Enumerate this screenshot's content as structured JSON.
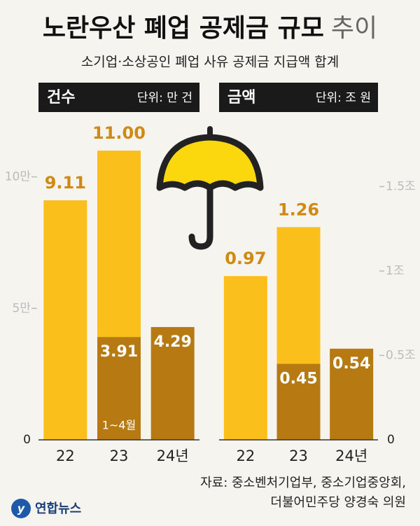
{
  "title": "노란우산 폐업 공제금 규모",
  "title_tail": "추이",
  "subtitle": "소기업·소상공인 폐업 사유 공제금 지급액 합계",
  "source": [
    "자료: 중소벤처기업부, 중소기업중앙회,",
    "더불어민주당 양경숙 의원"
  ],
  "logo": "연합뉴스",
  "chart_data": [
    {
      "type": "bar",
      "header": "건수",
      "unit": "단위: 만 건",
      "yaxis_side": "left",
      "categories": [
        "22",
        "23",
        "24년"
      ],
      "series": [
        {
          "color": "#fbbf1c",
          "values": [
            9.11,
            11,
            null
          ],
          "value_labels": [
            "9.11",
            "11.00",
            null
          ]
        },
        {
          "name": "1~4월",
          "color": "#b77a12",
          "values": [
            null,
            3.91,
            4.29
          ]
        }
      ],
      "ylim": [
        0,
        12.2
      ],
      "yticks": [
        0,
        {
          "value": 5,
          "label": "5만"
        },
        {
          "value": 10,
          "label": "10만"
        }
      ]
    },
    {
      "type": "bar",
      "header": "금액",
      "unit": "단위: 조 원",
      "yaxis_side": "right",
      "categories": [
        "22",
        "23",
        "24년"
      ],
      "series": [
        {
          "color": "#fbbf1c",
          "values": [
            0.97,
            1.26,
            null
          ]
        },
        {
          "color": "#b77a12",
          "values": [
            null,
            0.45,
            0.54
          ]
        }
      ],
      "ylim": [
        0,
        1.9
      ],
      "yticks": [
        0,
        {
          "value": 0.5,
          "label": "0.5조"
        },
        {
          "value": 1,
          "label": "1조"
        },
        {
          "value": 1.5,
          "label": "1.5조"
        }
      ]
    }
  ]
}
